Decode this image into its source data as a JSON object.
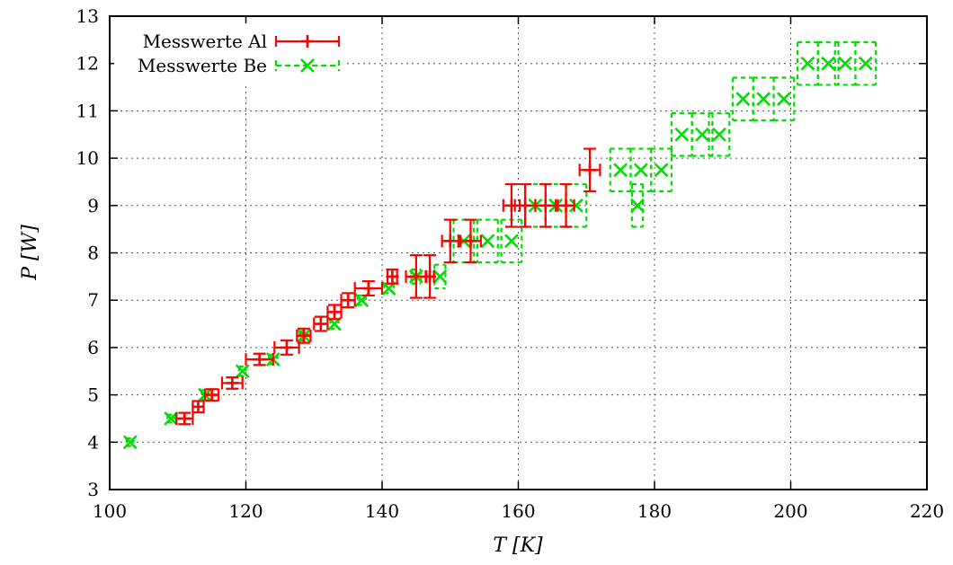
{
  "chart_data": {
    "type": "scatter",
    "title": "",
    "xlabel": "T [K]",
    "ylabel": "P [W]",
    "xlim": [
      100,
      220
    ],
    "ylim": [
      3,
      13
    ],
    "x_ticks": [
      100,
      120,
      140,
      160,
      180,
      200,
      220
    ],
    "y_ticks": [
      3,
      4,
      5,
      6,
      7,
      8,
      9,
      10,
      11,
      12,
      13
    ],
    "grid": true,
    "legend_position": "top-left",
    "series": [
      {
        "name": "Messwerte Al",
        "color": "#ff0000",
        "marker": "plus",
        "line_style": "solid",
        "points": [
          {
            "x": 111.0,
            "y": 4.5,
            "xerr": 1.2,
            "yerr": 0.12
          },
          {
            "x": 113.0,
            "y": 4.75,
            "xerr": 0.8,
            "yerr": 0.12
          },
          {
            "x": 115.0,
            "y": 5.0,
            "xerr": 1.0,
            "yerr": 0.12
          },
          {
            "x": 118.0,
            "y": 5.25,
            "xerr": 1.5,
            "yerr": 0.12
          },
          {
            "x": 122.0,
            "y": 5.75,
            "xerr": 2.0,
            "yerr": 0.12
          },
          {
            "x": 126.0,
            "y": 6.0,
            "xerr": 1.8,
            "yerr": 0.15
          },
          {
            "x": 128.5,
            "y": 6.25,
            "xerr": 1.0,
            "yerr": 0.15
          },
          {
            "x": 131.0,
            "y": 6.5,
            "xerr": 1.0,
            "yerr": 0.15
          },
          {
            "x": 133.0,
            "y": 6.75,
            "xerr": 1.0,
            "yerr": 0.15
          },
          {
            "x": 135.0,
            "y": 7.0,
            "xerr": 1.0,
            "yerr": 0.15
          },
          {
            "x": 138.0,
            "y": 7.25,
            "xerr": 2.0,
            "yerr": 0.15
          },
          {
            "x": 141.5,
            "y": 7.5,
            "xerr": 0.7,
            "yerr": 0.15
          },
          {
            "x": 145.0,
            "y": 7.5,
            "xerr": 1.5,
            "yerr": 0.45
          },
          {
            "x": 147.0,
            "y": 7.5,
            "xerr": 0.6,
            "yerr": 0.45
          },
          {
            "x": 150.0,
            "y": 8.25,
            "xerr": 1.2,
            "yerr": 0.45
          },
          {
            "x": 153.0,
            "y": 8.25,
            "xerr": 1.5,
            "yerr": 0.45
          },
          {
            "x": 159.0,
            "y": 9.0,
            "xerr": 1.2,
            "yerr": 0.45
          },
          {
            "x": 161.0,
            "y": 9.0,
            "xerr": 1.5,
            "yerr": 0.45
          },
          {
            "x": 164.0,
            "y": 9.0,
            "xerr": 1.5,
            "yerr": 0.45
          },
          {
            "x": 167.0,
            "y": 9.0,
            "xerr": 1.2,
            "yerr": 0.45
          },
          {
            "x": 170.5,
            "y": 9.75,
            "xerr": 1.5,
            "yerr": 0.45
          }
        ]
      },
      {
        "name": "Messwerte Be",
        "color": "#00dd00",
        "marker": "cross",
        "line_style": "dashed",
        "points": [
          {
            "x": 103.0,
            "y": 4.0,
            "xerr": 0.5,
            "yerr": 0.08
          },
          {
            "x": 109.0,
            "y": 4.5,
            "xerr": 0.5,
            "yerr": 0.08
          },
          {
            "x": 114.0,
            "y": 5.0,
            "xerr": 0.5,
            "yerr": 0.1
          },
          {
            "x": 119.5,
            "y": 5.5,
            "xerr": 0.5,
            "yerr": 0.1
          },
          {
            "x": 124.0,
            "y": 5.75,
            "xerr": 0.6,
            "yerr": 0.1
          },
          {
            "x": 128.5,
            "y": 6.25,
            "xerr": 0.6,
            "yerr": 0.1
          },
          {
            "x": 133.0,
            "y": 6.5,
            "xerr": 0.6,
            "yerr": 0.1
          },
          {
            "x": 137.0,
            "y": 7.0,
            "xerr": 0.6,
            "yerr": 0.1
          },
          {
            "x": 141.0,
            "y": 7.25,
            "xerr": 0.7,
            "yerr": 0.1
          },
          {
            "x": 145.0,
            "y": 7.5,
            "xerr": 0.7,
            "yerr": 0.15
          },
          {
            "x": 148.5,
            "y": 7.5,
            "xerr": 0.8,
            "yerr": 0.25
          },
          {
            "x": 152.0,
            "y": 8.25,
            "xerr": 1.5,
            "yerr": 0.45
          },
          {
            "x": 155.5,
            "y": 8.25,
            "xerr": 1.5,
            "yerr": 0.45
          },
          {
            "x": 159.0,
            "y": 8.25,
            "xerr": 1.5,
            "yerr": 0.45
          },
          {
            "x": 162.5,
            "y": 9.0,
            "xerr": 1.5,
            "yerr": 0.45
          },
          {
            "x": 165.5,
            "y": 9.0,
            "xerr": 1.5,
            "yerr": 0.45
          },
          {
            "x": 168.5,
            "y": 9.0,
            "xerr": 1.5,
            "yerr": 0.45
          },
          {
            "x": 175.0,
            "y": 9.75,
            "xerr": 1.5,
            "yerr": 0.45
          },
          {
            "x": 178.0,
            "y": 9.75,
            "xerr": 1.5,
            "yerr": 0.45
          },
          {
            "x": 177.5,
            "y": 9.0,
            "xerr": 0.8,
            "yerr": 0.45
          },
          {
            "x": 181.0,
            "y": 9.75,
            "xerr": 1.5,
            "yerr": 0.45
          },
          {
            "x": 184.0,
            "y": 10.5,
            "xerr": 1.5,
            "yerr": 0.45
          },
          {
            "x": 187.0,
            "y": 10.5,
            "xerr": 1.5,
            "yerr": 0.45
          },
          {
            "x": 189.5,
            "y": 10.5,
            "xerr": 1.5,
            "yerr": 0.45
          },
          {
            "x": 193.0,
            "y": 11.25,
            "xerr": 1.5,
            "yerr": 0.45
          },
          {
            "x": 196.0,
            "y": 11.25,
            "xerr": 1.5,
            "yerr": 0.45
          },
          {
            "x": 199.0,
            "y": 11.25,
            "xerr": 1.5,
            "yerr": 0.45
          },
          {
            "x": 202.5,
            "y": 12.0,
            "xerr": 1.5,
            "yerr": 0.45
          },
          {
            "x": 205.5,
            "y": 12.0,
            "xerr": 1.5,
            "yerr": 0.45
          },
          {
            "x": 208.0,
            "y": 12.0,
            "xerr": 1.5,
            "yerr": 0.45
          },
          {
            "x": 211.0,
            "y": 12.0,
            "xerr": 1.5,
            "yerr": 0.45
          }
        ]
      }
    ]
  }
}
